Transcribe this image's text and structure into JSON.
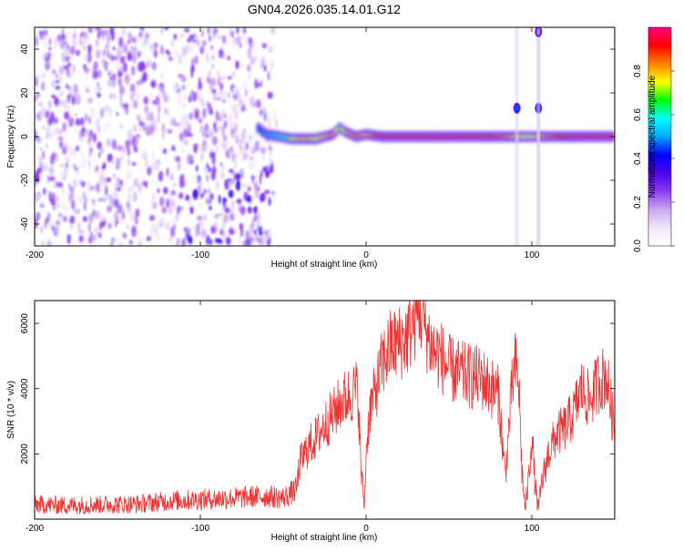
{
  "figure": {
    "title": "GN04.2026.035.14.01.G12"
  },
  "colorbar": {
    "label": "Normalized spectral amplitude",
    "ticks": [
      "0.0",
      "0.2",
      "0.4",
      "0.6",
      "0.8"
    ],
    "colors": [
      "#ffffff",
      "#f0e6fb",
      "#c9a8f0",
      "#8a3cf0",
      "#5000f0",
      "#0000ff",
      "#00a8ff",
      "#00ffff",
      "#00ff00",
      "#ffff00",
      "#ff8000",
      "#ff0000",
      "#ff0080"
    ]
  },
  "chart_data": [
    {
      "type": "heatmap",
      "title": "GN04.2026.035.14.01.G12",
      "xlabel": "Height of straight line (km)",
      "ylabel": "Frequency (Hz)",
      "xlim": [
        -200,
        150
      ],
      "ylim": [
        -50,
        50
      ],
      "xticks": [
        -200,
        -100,
        0,
        100
      ],
      "yticks": [
        -40,
        -20,
        0,
        20,
        40
      ],
      "xtick_labels": [
        "-200",
        "-100",
        "0",
        "100"
      ],
      "ytick_labels": [
        "-40",
        "-20",
        "0",
        "20",
        "40"
      ],
      "zlabel": "Normalized spectral amplitude",
      "zlim": [
        0,
        1
      ],
      "noise_region": {
        "x_range": [
          -200,
          -55
        ],
        "y_range": [
          -50,
          50
        ],
        "amplitude": [
          0.1,
          0.35
        ]
      },
      "main_line": [
        {
          "x": -65,
          "y": 4,
          "amp": 0.45
        },
        {
          "x": -60,
          "y": 1,
          "amp": 0.5
        },
        {
          "x": -52,
          "y": 0,
          "amp": 0.55
        },
        {
          "x": -45,
          "y": -1,
          "amp": 0.75
        },
        {
          "x": -38,
          "y": -1,
          "amp": 0.8
        },
        {
          "x": -30,
          "y": -1,
          "amp": 0.75
        },
        {
          "x": -20,
          "y": 1,
          "amp": 0.85
        },
        {
          "x": -16,
          "y": 4,
          "amp": 0.7
        },
        {
          "x": -12,
          "y": 2,
          "amp": 0.8
        },
        {
          "x": -6,
          "y": 0,
          "amp": 0.85
        },
        {
          "x": 0,
          "y": 1,
          "amp": 0.8
        },
        {
          "x": 10,
          "y": 0,
          "amp": 0.95
        },
        {
          "x": 30,
          "y": 0,
          "amp": 0.95
        },
        {
          "x": 50,
          "y": 0,
          "amp": 0.95
        },
        {
          "x": 70,
          "y": 0,
          "amp": 0.95
        },
        {
          "x": 85,
          "y": 0,
          "amp": 0.85
        },
        {
          "x": 92,
          "y": 0,
          "amp": 0.75
        },
        {
          "x": 100,
          "y": 0,
          "amp": 0.75
        },
        {
          "x": 115,
          "y": 0,
          "amp": 0.9
        },
        {
          "x": 130,
          "y": 0,
          "amp": 0.95
        },
        {
          "x": 150,
          "y": 0,
          "amp": 0.95
        }
      ],
      "spikes": [
        {
          "x": 91,
          "y": 13,
          "amp": 0.45
        },
        {
          "x": 104,
          "y": 13,
          "amp": 0.45
        },
        {
          "x": 104,
          "y": 48,
          "amp": 0.2
        }
      ]
    },
    {
      "type": "line",
      "xlabel": "Height of straight line (km)",
      "ylabel": "SNR (10 * v/v)",
      "xlim": [
        -200,
        150
      ],
      "ylim": [
        0,
        6700
      ],
      "xticks": [
        -200,
        -100,
        0,
        100
      ],
      "yticks": [
        2000,
        4000,
        6000
      ],
      "xtick_labels": [
        "-200",
        "-100",
        "0",
        "100"
      ],
      "ytick_labels": [
        "2000",
        "4000",
        "6000"
      ],
      "color": "#ef3333",
      "x": [
        -200,
        -180,
        -160,
        -140,
        -120,
        -100,
        -80,
        -60,
        -50,
        -42,
        -40,
        -35,
        -30,
        -25,
        -20,
        -15,
        -10,
        -5,
        -3,
        -1,
        0,
        2,
        5,
        10,
        15,
        20,
        25,
        30,
        32,
        35,
        40,
        45,
        50,
        55,
        60,
        70,
        80,
        82,
        84,
        86,
        88,
        90,
        92,
        94,
        96,
        98,
        100,
        102,
        104,
        106,
        110,
        115,
        120,
        125,
        130,
        135,
        140,
        145,
        150
      ],
      "y": [
        450,
        420,
        450,
        450,
        550,
        600,
        650,
        700,
        650,
        900,
        1700,
        2200,
        2500,
        2900,
        3200,
        3600,
        3800,
        4000,
        1500,
        400,
        2000,
        3300,
        3800,
        4800,
        5300,
        5400,
        5600,
        6200,
        6600,
        6000,
        5200,
        5000,
        4600,
        4500,
        4400,
        4300,
        3800,
        2500,
        1300,
        2700,
        4000,
        4700,
        4300,
        1500,
        300,
        1200,
        2600,
        1000,
        300,
        1100,
        2000,
        2600,
        2800,
        3200,
        4000,
        3600,
        4200,
        4400,
        2700
      ]
    }
  ]
}
